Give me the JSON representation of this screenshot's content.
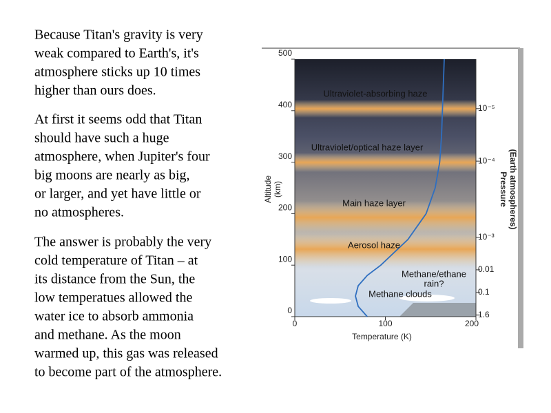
{
  "paragraphs": [
    [
      "Because Titan's gravity is very",
      "weak compared to Earth's, it's",
      "atmosphere sticks up 10 times",
      "higher than ours does."
    ],
    [
      "At first it seems odd that Titan",
      "should have such a huge",
      "atmosphere, when Jupiter's four",
      "big moons are nearly as big,",
      "or larger, and yet have little or",
      "no atmospheres."
    ],
    [
      "The answer is probably the very",
      "cold temperature of Titan – at",
      "its distance from the Sun, the",
      "low temperatues allowed the",
      "water ice to absorb ammonia",
      "and methane.  As the moon",
      "warmed up, this gas was released",
      "to become part of the atmosphere."
    ]
  ],
  "chart_data": {
    "type": "line",
    "x_label": "Temperature (K)",
    "y_label": [
      "Altitude",
      "(km)"
    ],
    "y2_label": [
      "Pressure",
      "(Earth atmospheres)"
    ],
    "xlim": [
      0,
      200
    ],
    "xticks": [
      0,
      100,
      200
    ],
    "ylim": [
      0,
      500
    ],
    "yticks": [
      0,
      100,
      200,
      300,
      400,
      500
    ],
    "series": [
      {
        "color": "#2f6fc0",
        "altitude": [
          0,
          20,
          40,
          60,
          80,
          100,
          150,
          200,
          250,
          300,
          350,
          400,
          450,
          500
        ],
        "values": [
          80,
          70,
          67,
          70,
          80,
          95,
          125,
          145,
          155,
          160,
          162,
          163,
          164,
          165
        ]
      }
    ],
    "pressure_ticks": [
      {
        "value": 404,
        "label": "10⁻⁵"
      },
      {
        "value": 302,
        "label": "10⁻⁴"
      },
      {
        "value": 154,
        "label": "10⁻³"
      },
      {
        "value": 91,
        "label": "0.01"
      },
      {
        "value": 47,
        "label": "0.1"
      },
      {
        "value": 3,
        "label": "1.6"
      }
    ],
    "annotations": [
      "Ultraviolet-absorbing haze",
      "Ultraviolet/optical haze layer",
      "Main haze layer",
      "Aerosol haze",
      "Methane/ethane",
      "rain?",
      "Methane clouds"
    ]
  }
}
